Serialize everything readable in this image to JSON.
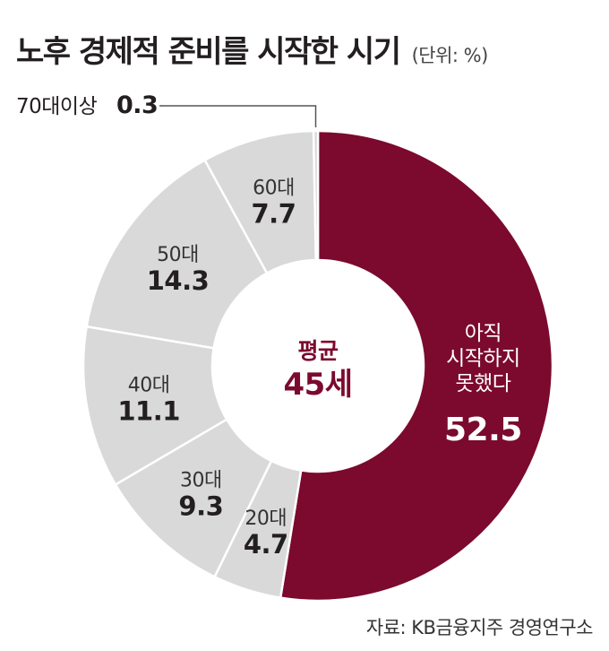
{
  "title": "노후 경제적 준비를 시작한 시기",
  "unit": "(단위: %)",
  "source": "자료: KB금융지주 경영연구소",
  "center": {
    "label": "평균",
    "value": "45세"
  },
  "colors": {
    "highlight": "#7b0a2e",
    "muted": "#d9d9d9",
    "separator": "#ffffff"
  },
  "chart_data": {
    "type": "pie",
    "categories": [
      "아직 시작하지 못했다",
      "20대",
      "30대",
      "40대",
      "50대",
      "60대",
      "70대이상"
    ],
    "values": [
      52.5,
      4.7,
      9.3,
      11.1,
      14.3,
      7.7,
      0.3
    ],
    "value_labels": [
      "52.5",
      "4.7",
      "9.3",
      "11.1",
      "14.3",
      "7.7",
      "0.3"
    ],
    "label_lines": [
      [
        "아직",
        "시작하지",
        "못했다"
      ],
      [
        "20대"
      ],
      [
        "30대"
      ],
      [
        "40대"
      ],
      [
        "50대"
      ],
      [
        "60대"
      ],
      [
        "70대이상"
      ]
    ],
    "donut": true
  }
}
